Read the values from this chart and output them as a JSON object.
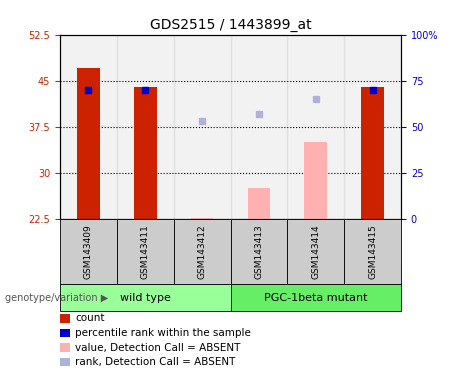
{
  "title": "GDS2515 / 1443899_at",
  "samples": [
    "GSM143409",
    "GSM143411",
    "GSM143412",
    "GSM143413",
    "GSM143414",
    "GSM143415"
  ],
  "count_values": [
    47.0,
    44.0,
    null,
    null,
    null,
    44.0
  ],
  "percentile_rank_values": [
    43.5,
    43.5,
    null,
    null,
    null,
    43.5
  ],
  "absent_value_values": [
    null,
    null,
    22.7,
    27.5,
    35.0,
    null
  ],
  "absent_rank_values": [
    null,
    null,
    38.5,
    39.5,
    42.0,
    null
  ],
  "ylim_left": [
    22.5,
    52.5
  ],
  "ylim_right": [
    0,
    100
  ],
  "yticks_left": [
    22.5,
    30,
    37.5,
    45,
    52.5
  ],
  "yticks_right": [
    0,
    25,
    50,
    75,
    100
  ],
  "ytick_labels_left": [
    "22.5",
    "30",
    "37.5",
    "45",
    "52.5"
  ],
  "ytick_labels_right": [
    "0",
    "25",
    "50",
    "75",
    "100%"
  ],
  "grid_lines": [
    30,
    37.5,
    45
  ],
  "color_count": "#cc2200",
  "color_percentile": "#0000cc",
  "color_absent_value": "#ffb0b0",
  "color_absent_rank": "#b0b0dd",
  "color_wt": "#99ff99",
  "color_mutant": "#66ee66",
  "color_sample_bg": "#cccccc",
  "bar_width": 0.4,
  "baseline": 22.5,
  "wt_indices": [
    0,
    1,
    2
  ],
  "mut_indices": [
    3,
    4,
    5
  ],
  "legend_items": [
    {
      "color": "#cc2200",
      "label": "count"
    },
    {
      "color": "#0000cc",
      "label": "percentile rank within the sample"
    },
    {
      "color": "#ffb0b0",
      "label": "value, Detection Call = ABSENT"
    },
    {
      "color": "#b0b0dd",
      "label": "rank, Detection Call = ABSENT"
    }
  ]
}
